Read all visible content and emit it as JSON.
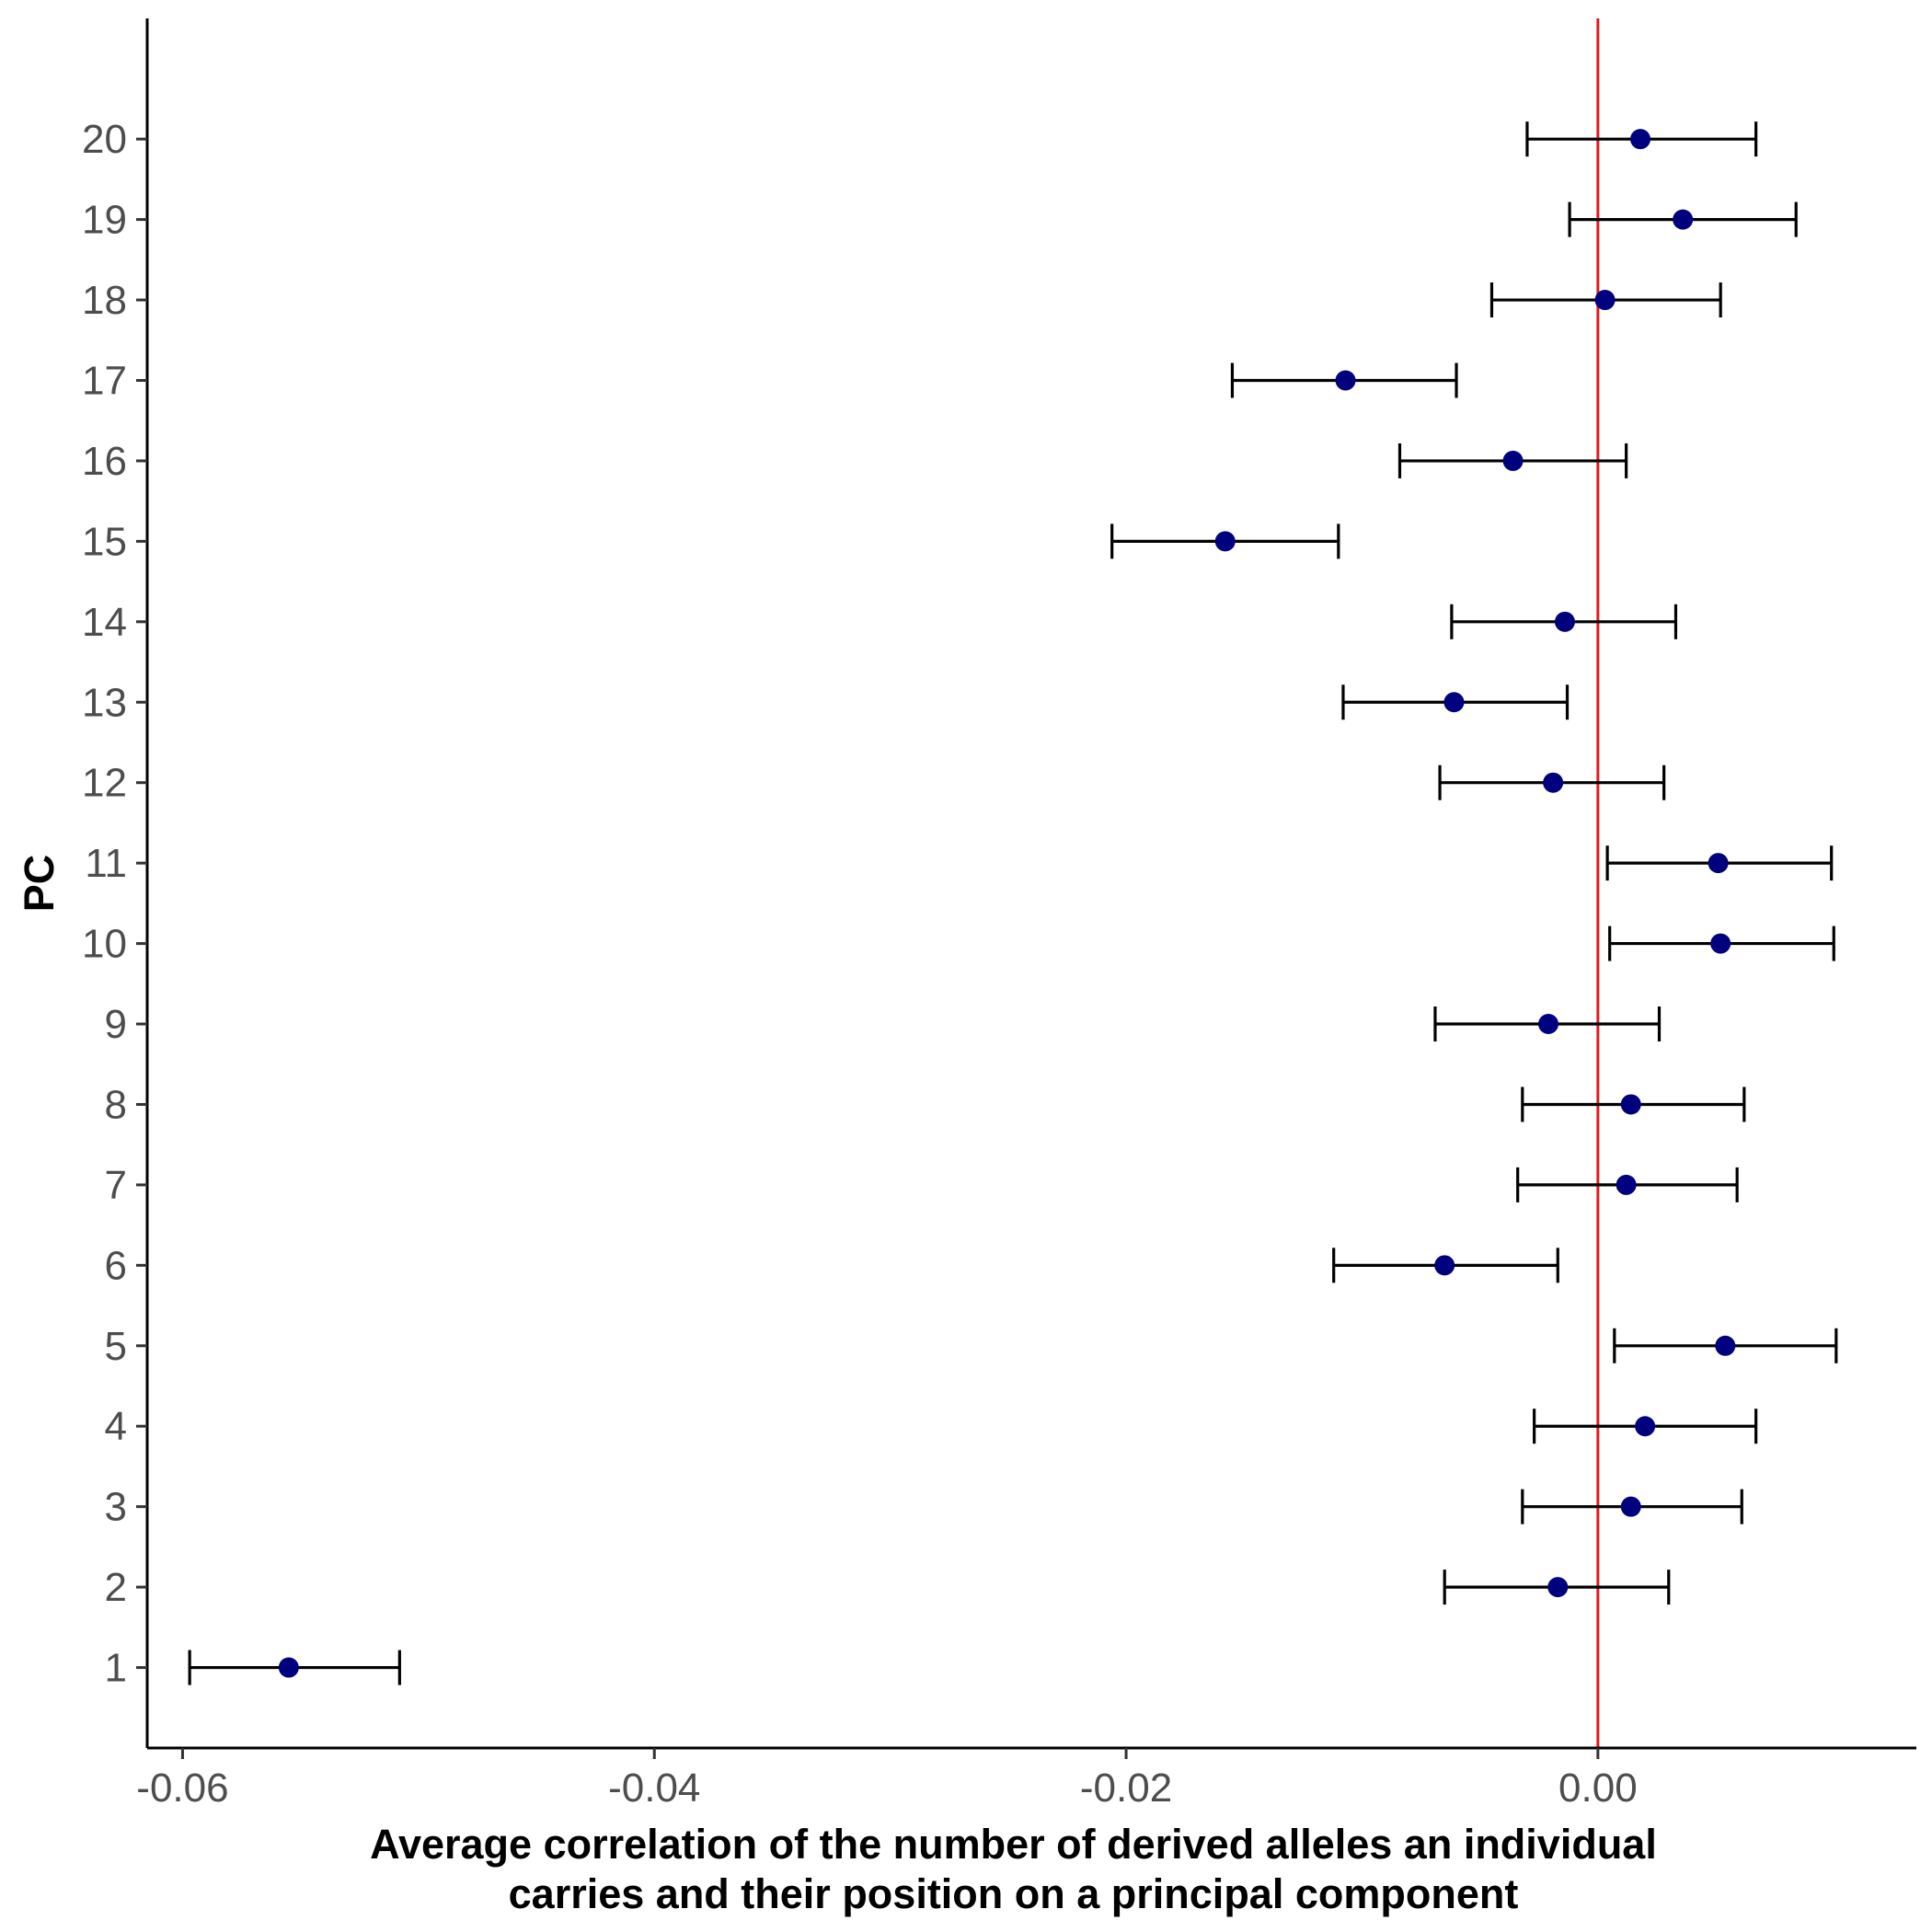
{
  "chart_data": {
    "type": "scatter",
    "subtype": "point-with-horizontal-error-bars",
    "title": "",
    "xlabel_lines": [
      "Average correlation of the number of derived alleles an individual",
      "carries and their position on a principal component"
    ],
    "ylabel": "PC",
    "xlim": [
      -0.0615,
      0.0135
    ],
    "ylim": [
      0,
      21.5
    ],
    "x_ticks": [
      -0.06,
      -0.04,
      -0.02,
      0.0
    ],
    "x_tick_labels": [
      "-0.06",
      "-0.04",
      "-0.02",
      "0.00"
    ],
    "y_ticks": [
      1,
      2,
      3,
      4,
      5,
      6,
      7,
      8,
      9,
      10,
      11,
      12,
      13,
      14,
      15,
      16,
      17,
      18,
      19,
      20
    ],
    "y_tick_labels": [
      "1",
      "2",
      "3",
      "4",
      "5",
      "6",
      "7",
      "8",
      "9",
      "10",
      "11",
      "12",
      "13",
      "14",
      "15",
      "16",
      "17",
      "18",
      "19",
      "20"
    ],
    "reference_line": {
      "x": 0,
      "color": "#e31a1c"
    },
    "point_color": "#00007f",
    "errorbar_color": "#000000",
    "grid": false,
    "legend": "none",
    "points": [
      {
        "pc": 1,
        "x": -0.0555,
        "xmin": -0.0597,
        "xmax": -0.0508
      },
      {
        "pc": 2,
        "x": -0.0017,
        "xmin": -0.0065,
        "xmax": 0.003
      },
      {
        "pc": 3,
        "x": 0.0014,
        "xmin": -0.0032,
        "xmax": 0.0061
      },
      {
        "pc": 4,
        "x": 0.002,
        "xmin": -0.0027,
        "xmax": 0.0067
      },
      {
        "pc": 5,
        "x": 0.0054,
        "xmin": 0.0007,
        "xmax": 0.0101
      },
      {
        "pc": 6,
        "x": -0.0065,
        "xmin": -0.0112,
        "xmax": -0.0017
      },
      {
        "pc": 7,
        "x": 0.0012,
        "xmin": -0.0034,
        "xmax": 0.0059
      },
      {
        "pc": 8,
        "x": 0.0014,
        "xmin": -0.0032,
        "xmax": 0.0062
      },
      {
        "pc": 9,
        "x": -0.0021,
        "xmin": -0.0069,
        "xmax": 0.0026
      },
      {
        "pc": 10,
        "x": 0.0052,
        "xmin": 0.0005,
        "xmax": 0.01
      },
      {
        "pc": 11,
        "x": 0.0051,
        "xmin": 0.0004,
        "xmax": 0.0099
      },
      {
        "pc": 12,
        "x": -0.0019,
        "xmin": -0.0067,
        "xmax": 0.0028
      },
      {
        "pc": 13,
        "x": -0.0061,
        "xmin": -0.0108,
        "xmax": -0.0013
      },
      {
        "pc": 14,
        "x": -0.0014,
        "xmin": -0.0062,
        "xmax": 0.0033
      },
      {
        "pc": 15,
        "x": -0.0158,
        "xmin": -0.0206,
        "xmax": -0.011
      },
      {
        "pc": 16,
        "x": -0.0036,
        "xmin": -0.0084,
        "xmax": 0.0012
      },
      {
        "pc": 17,
        "x": -0.0107,
        "xmin": -0.0155,
        "xmax": -0.006
      },
      {
        "pc": 18,
        "x": 0.0003,
        "xmin": -0.0045,
        "xmax": 0.0052
      },
      {
        "pc": 19,
        "x": 0.0036,
        "xmin": -0.0012,
        "xmax": 0.0084
      },
      {
        "pc": 20,
        "x": 0.0018,
        "xmin": -0.003,
        "xmax": 0.0067
      }
    ]
  }
}
